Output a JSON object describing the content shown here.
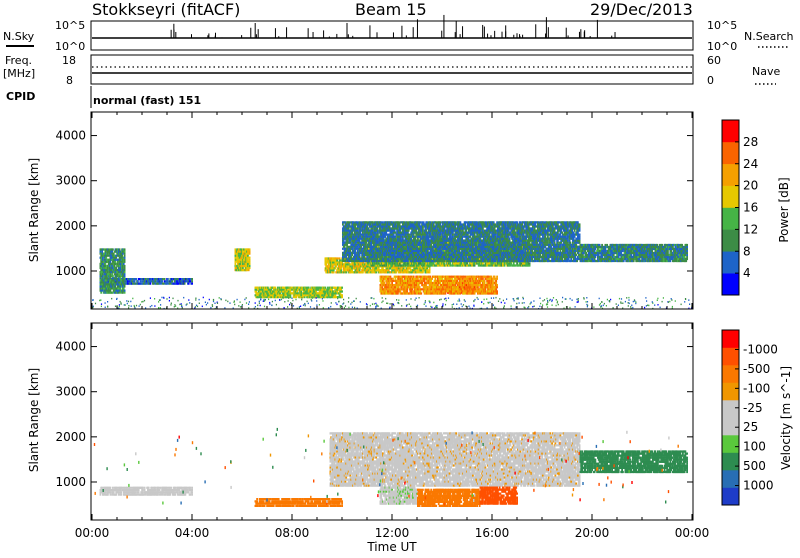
{
  "header": {
    "station": "Stokkseyri (fitACF)",
    "beam": "Beam 15",
    "date": "29/Dec/2013"
  },
  "strips": {
    "nsky_label": "N.Sky",
    "nsearch_label": "N.Search",
    "noise_ticks": [
      "10^5",
      "10^0"
    ],
    "freq_label": "Freq.",
    "freq_unit": "[MHz]",
    "freq_ticks": [
      "18",
      "8"
    ],
    "nave_label": "Nave",
    "nave_ticks": [
      "60",
      "0"
    ],
    "cpid_label": "CPID",
    "cpid_text": "normal (fast) 151"
  },
  "chart_data": [
    {
      "type": "heatmap",
      "panel": "power",
      "xlabel": "Time UT",
      "ylabel": "Slant Range [km]",
      "x_ticks": [
        "00:00",
        "04:00",
        "08:00",
        "12:00",
        "16:00",
        "20:00",
        "00:00"
      ],
      "xlim_hours": [
        0,
        24
      ],
      "y_ticks": [
        1000,
        2000,
        3000,
        4000
      ],
      "ylim": [
        180,
        4500
      ],
      "colorbar": {
        "label": "Power [dB]",
        "ticks": [
          4,
          8,
          12,
          16,
          20,
          24,
          28
        ],
        "range": [
          0,
          30
        ],
        "colors": [
          "#0000ff",
          "#1e64c8",
          "#3c8c46",
          "#46b446",
          "#e6c800",
          "#f5a000",
          "#fa6400",
          "#ff0000"
        ]
      },
      "regions": [
        {
          "t": [
            14.2,
            15.3
          ],
          "r": [
            500,
            750
          ],
          "v": 30
        },
        {
          "t": [
            11.5,
            16.2
          ],
          "r": [
            480,
            900
          ],
          "v": 23
        },
        {
          "t": [
            9.3,
            13.5
          ],
          "r": [
            950,
            1300
          ],
          "v": 18
        },
        {
          "t": [
            11.0,
            17.5
          ],
          "r": [
            1100,
            1700
          ],
          "v": 14
        },
        {
          "t": [
            10.0,
            19.5
          ],
          "r": [
            1200,
            2100
          ],
          "v": 8
        },
        {
          "t": [
            19.5,
            23.8
          ],
          "r": [
            1200,
            1600
          ],
          "v": 9
        },
        {
          "t": [
            6.5,
            10.0
          ],
          "r": [
            400,
            650
          ],
          "v": 16
        },
        {
          "t": [
            0.6,
            4.0
          ],
          "r": [
            700,
            850
          ],
          "v": 6
        },
        {
          "t": [
            0.3,
            1.3
          ],
          "r": [
            500,
            1500
          ],
          "v": 10
        },
        {
          "t": [
            5.7,
            6.3
          ],
          "r": [
            1000,
            1500
          ],
          "v": 17
        }
      ]
    },
    {
      "type": "heatmap",
      "panel": "velocity",
      "xlabel": "Time UT",
      "ylabel": "Slant Range [km]",
      "x_ticks": [
        "00:00",
        "04:00",
        "08:00",
        "12:00",
        "16:00",
        "20:00",
        "00:00"
      ],
      "xlim_hours": [
        0,
        24
      ],
      "y_ticks": [
        1000,
        2000,
        3000,
        4000
      ],
      "ylim": [
        180,
        4500
      ],
      "colorbar": {
        "label": "Velocity [m s^-1]",
        "ticks": [
          "1000",
          "500",
          "100",
          "25",
          "-25",
          "-100",
          "-500",
          "-1000"
        ],
        "colors": [
          "#1e3cc8",
          "#286eb4",
          "#2d8c50",
          "#5ac83c",
          "#c8c8c8",
          "#c8c8c8",
          "#f09600",
          "#fa7800",
          "#ff5000",
          "#ff0000"
        ]
      },
      "regions": [
        {
          "t": [
            9.5,
            19.5
          ],
          "r": [
            900,
            2100
          ],
          "v": 0
        },
        {
          "t": [
            11.5,
            13.0
          ],
          "r": [
            500,
            900
          ],
          "v": 80
        },
        {
          "t": [
            13.0,
            15.5
          ],
          "r": [
            450,
            850
          ],
          "v": -150
        },
        {
          "t": [
            15.5,
            17.0
          ],
          "r": [
            500,
            900
          ],
          "v": -400
        },
        {
          "t": [
            6.5,
            10.0
          ],
          "r": [
            450,
            650
          ],
          "v": -150
        },
        {
          "t": [
            19.5,
            23.8
          ],
          "r": [
            1200,
            1700
          ],
          "v": 300
        },
        {
          "t": [
            0.3,
            4.0
          ],
          "r": [
            700,
            900
          ],
          "v": 50
        }
      ]
    }
  ]
}
